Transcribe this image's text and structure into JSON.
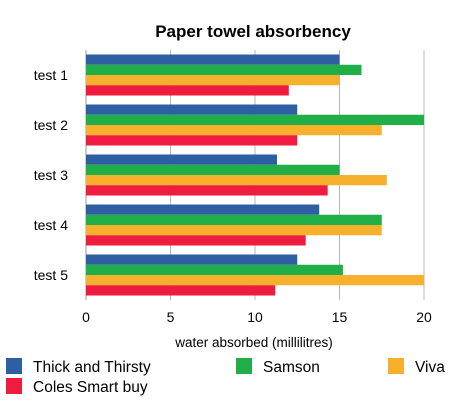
{
  "chart_data": {
    "type": "bar",
    "orientation": "horizontal",
    "title": "Paper towel absorbency",
    "xlabel": "water absorbed (millilitres)",
    "ylabel": "",
    "categories": [
      "test 1",
      "test 2",
      "test 3",
      "test 4",
      "test 5"
    ],
    "xlim": [
      0,
      20
    ],
    "xticks": [
      "0",
      "5",
      "10",
      "15",
      "20"
    ],
    "grid": true,
    "legend_position": "bottom",
    "series": [
      {
        "name": "Thick and Thirsty",
        "color": "#2e5fa3",
        "values": [
          15,
          12.5,
          11.3,
          13.8,
          12.5
        ]
      },
      {
        "name": "Samson",
        "color": "#1fae48",
        "values": [
          16.3,
          20,
          15,
          17.5,
          15.2
        ]
      },
      {
        "name": "Viva",
        "color": "#f7b02b",
        "values": [
          15,
          17.5,
          17.8,
          17.5,
          20
        ]
      },
      {
        "name": "Coles Smart buy",
        "color": "#ee1c3f",
        "values": [
          12,
          12.5,
          14.3,
          13,
          11.2
        ]
      }
    ]
  }
}
